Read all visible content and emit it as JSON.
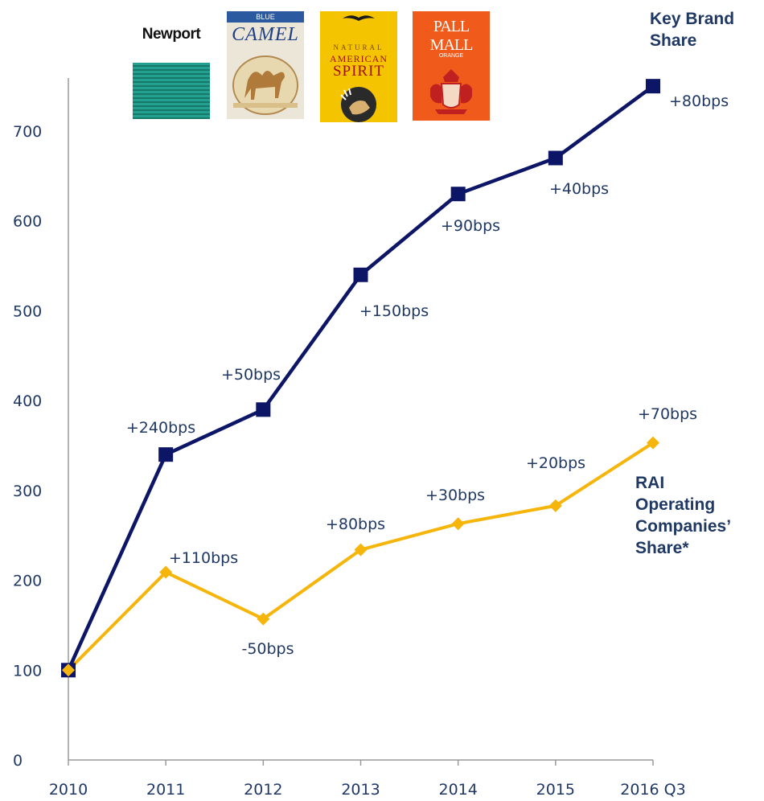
{
  "colors": {
    "key_brand": "#0c1566",
    "rai": "#f5b50a",
    "axis": "#9a9a9a",
    "text": "#1f3864"
  },
  "logos": [
    {
      "name": "Newport",
      "text": "Newport",
      "bg": "#1f9b8a",
      "icon": "newport-pack-icon"
    },
    {
      "name": "Camel",
      "top_text": "BLUE",
      "text": "CAMEL",
      "bg": "#e9e2d2",
      "icon": "camel-pack-icon"
    },
    {
      "name": "Natural American Spirit",
      "top_text": "NATURAL",
      "mid_text": "AMERICAN",
      "text": "SPIRIT",
      "bg": "#f5c400",
      "icon": "american-spirit-pack-icon"
    },
    {
      "name": "Pall Mall",
      "text": "PALL MALL",
      "sub_text": "ORANGE",
      "bg": "#f05a1a",
      "icon": "pall-mall-pack-icon"
    }
  ],
  "chart_data": {
    "type": "line",
    "categories": [
      "2010",
      "2011",
      "2012",
      "2013",
      "2014",
      "2015",
      "2016 Q3"
    ],
    "ylim": [
      0,
      700
    ],
    "yticks": [
      0,
      100,
      200,
      300,
      400,
      500,
      600,
      700
    ],
    "series": [
      {
        "key": "key_brand",
        "name_lines": [
          "Key Brand",
          "Share"
        ],
        "marker": "square",
        "values": [
          100,
          340,
          390,
          540,
          630,
          670,
          750
        ],
        "labels": [
          "",
          "+240bps",
          "+50bps",
          "+150bps",
          "+90bps",
          "+40bps",
          "+80bps"
        ]
      },
      {
        "key": "rai",
        "name_lines": [
          "RAI",
          "Operating",
          "Companies’",
          "Share*"
        ],
        "marker": "diamond",
        "values": [
          100,
          209,
          157,
          234,
          263,
          283,
          353
        ],
        "labels": [
          "",
          "+110bps",
          "-50bps",
          "+80bps",
          "+30bps",
          "+20bps",
          "+70bps"
        ]
      }
    ]
  }
}
